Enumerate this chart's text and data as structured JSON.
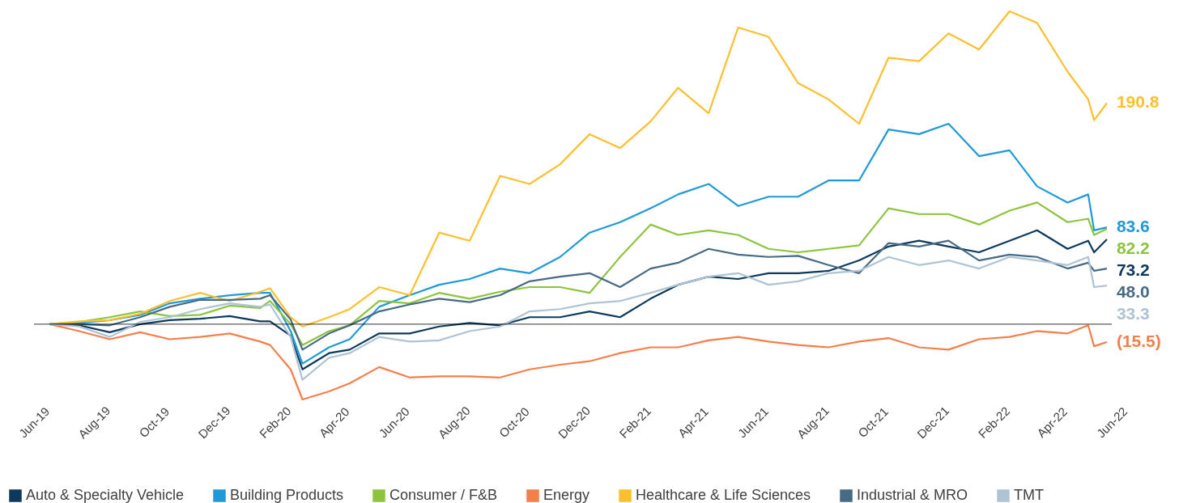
{
  "chart_data": {
    "type": "line",
    "x": [
      "2019-06-17",
      "2019-07-17",
      "2019-08-17",
      "2019-09-17",
      "2019-10-17",
      "2019-11-17",
      "2019-12-17",
      "2020-01-17",
      "2020-01-27",
      "2020-02-17",
      "2020-02-29",
      "2020-03-27",
      "2020-04-17",
      "2020-05-17",
      "2020-06-17",
      "2020-07-17",
      "2020-08-17",
      "2020-09-17",
      "2020-10-17",
      "2020-11-17",
      "2020-12-17",
      "2021-01-17",
      "2021-02-17",
      "2021-03-17",
      "2021-04-17",
      "2021-05-17",
      "2021-06-17",
      "2021-07-17",
      "2021-08-17",
      "2021-09-17",
      "2021-10-17",
      "2021-11-17",
      "2021-12-17",
      "2022-01-17",
      "2022-02-17",
      "2022-03-17",
      "2022-04-17",
      "2022-05-08",
      "2022-05-14",
      "2022-05-27"
    ],
    "series": [
      {
        "name": "Auto & Specialty Vehicle",
        "color": "#0d3a5c",
        "values": [
          0,
          -1,
          -7,
          0,
          3.5,
          4.7,
          7,
          2.4,
          2.4,
          -10,
          -39,
          -25,
          -22,
          -8,
          -8,
          -2,
          1,
          -1,
          6,
          6,
          11,
          6,
          22,
          34,
          41,
          39,
          44,
          44,
          46,
          55,
          67,
          72,
          67,
          62,
          72,
          81,
          65,
          72,
          62,
          73.2
        ],
        "value_labels": [
          null,
          null,
          null,
          null,
          null,
          null,
          null,
          null,
          null,
          null,
          null,
          null,
          null,
          null,
          null,
          null,
          null,
          null,
          null,
          null,
          null,
          null,
          null,
          null,
          null,
          null,
          null,
          null,
          null,
          null,
          null,
          null,
          null,
          null,
          null,
          null,
          null,
          null,
          null,
          "73.2"
        ]
      },
      {
        "name": "Building Products",
        "color": "#1f9ad6",
        "values": [
          0,
          1,
          3.5,
          8,
          18,
          22,
          25,
          27,
          27,
          -6,
          -34,
          -20,
          -13,
          15,
          25,
          34,
          39,
          48,
          44,
          58,
          79,
          88,
          100,
          112,
          121,
          102,
          110,
          110,
          124,
          124,
          168,
          164,
          173,
          145,
          150,
          119,
          105,
          112,
          81,
          83.6
        ],
        "value_labels": [
          null,
          null,
          null,
          null,
          null,
          null,
          null,
          null,
          null,
          null,
          null,
          null,
          null,
          null,
          null,
          null,
          null,
          null,
          null,
          null,
          null,
          null,
          null,
          null,
          null,
          null,
          null,
          null,
          null,
          null,
          null,
          null,
          null,
          null,
          null,
          null,
          null,
          null,
          null,
          "83.6"
        ]
      },
      {
        "name": "Consumer / F&B",
        "color": "#8cc43f",
        "values": [
          0,
          2,
          6,
          11,
          7,
          8,
          16,
          14,
          20,
          0,
          -18,
          -6,
          -1,
          20,
          18,
          27,
          22,
          28,
          32,
          32,
          27,
          58,
          86,
          77,
          81,
          77,
          65,
          62,
          65,
          68,
          100,
          95,
          95,
          86,
          98,
          105,
          88,
          91,
          77,
          82.2
        ],
        "value_labels": [
          null,
          null,
          null,
          null,
          null,
          null,
          null,
          null,
          null,
          null,
          null,
          null,
          null,
          null,
          null,
          null,
          null,
          null,
          null,
          null,
          null,
          null,
          null,
          null,
          null,
          null,
          null,
          null,
          null,
          null,
          null,
          null,
          null,
          null,
          null,
          null,
          null,
          null,
          null,
          "82.2"
        ]
      },
      {
        "name": "Energy",
        "color": "#f47f4a",
        "values": [
          0,
          -6,
          -13,
          -7,
          -13,
          -11,
          -8,
          -15,
          -18,
          -39,
          -65,
          -58,
          -51,
          -37,
          -46,
          -45,
          -45,
          -46,
          -39,
          -35,
          -32,
          -25,
          -20,
          -20,
          -14,
          -11,
          -15,
          -18,
          -20,
          -15,
          -12,
          -20,
          -22,
          -13,
          -11,
          -6,
          -8,
          -1,
          -19,
          -15.5
        ],
        "value_labels": [
          null,
          null,
          null,
          null,
          null,
          null,
          null,
          null,
          null,
          null,
          null,
          null,
          null,
          null,
          null,
          null,
          null,
          null,
          null,
          null,
          null,
          null,
          null,
          null,
          null,
          null,
          null,
          null,
          null,
          null,
          null,
          null,
          null,
          null,
          null,
          null,
          null,
          null,
          null,
          "(15.5)"
        ]
      },
      {
        "name": "Healthcare & Life Sciences",
        "color": "#fcc02e",
        "values": [
          0,
          2.4,
          3.5,
          9,
          20,
          27,
          20,
          28,
          31,
          6,
          -2,
          6,
          13,
          32,
          25,
          79,
          72,
          128,
          121,
          138,
          164,
          152,
          175,
          204,
          182,
          256,
          248,
          208,
          194,
          173,
          230,
          227,
          251,
          237,
          270,
          260,
          218,
          194,
          176,
          190.8
        ],
        "value_labels": [
          null,
          null,
          null,
          null,
          null,
          null,
          null,
          null,
          null,
          null,
          null,
          null,
          null,
          null,
          null,
          null,
          null,
          null,
          null,
          null,
          null,
          null,
          null,
          null,
          null,
          null,
          null,
          null,
          null,
          null,
          null,
          null,
          null,
          null,
          null,
          null,
          null,
          null,
          null,
          "190.8"
        ]
      },
      {
        "name": "Industrial & MRO",
        "color": "#476a85",
        "values": [
          0,
          0,
          -1,
          6,
          15,
          21,
          21,
          22,
          25,
          4,
          -22,
          -8,
          -1,
          11,
          17,
          22,
          19,
          25,
          37,
          41,
          44,
          32,
          48,
          53,
          65,
          60,
          58,
          59,
          51,
          44,
          70,
          67,
          72,
          55,
          60,
          58,
          48,
          53,
          46,
          48.0
        ],
        "value_labels": [
          null,
          null,
          null,
          null,
          null,
          null,
          null,
          null,
          null,
          null,
          null,
          null,
          null,
          null,
          null,
          null,
          null,
          null,
          null,
          null,
          null,
          null,
          null,
          null,
          null,
          null,
          null,
          null,
          null,
          null,
          null,
          null,
          null,
          null,
          null,
          null,
          null,
          null,
          null,
          "48.0"
        ]
      },
      {
        "name": "TMT",
        "color": "#aec4d4",
        "values": [
          0,
          -2,
          -11,
          2,
          6,
          13,
          18,
          15,
          17,
          -11,
          -48,
          -29,
          -25,
          -11,
          -15,
          -14,
          -6,
          -2,
          11,
          13,
          18,
          20,
          27,
          34,
          41,
          44,
          34,
          37,
          44,
          46,
          58,
          51,
          55,
          48,
          58,
          55,
          51,
          58,
          32,
          33.3
        ],
        "value_labels": [
          null,
          null,
          null,
          null,
          null,
          null,
          null,
          null,
          null,
          null,
          null,
          null,
          null,
          null,
          null,
          null,
          null,
          null,
          null,
          null,
          null,
          null,
          null,
          null,
          null,
          null,
          null,
          null,
          null,
          null,
          null,
          null,
          null,
          null,
          null,
          null,
          null,
          null,
          null,
          "33.3"
        ]
      }
    ],
    "xlim": [
      "2019-06-01",
      "2022-06-01"
    ],
    "xticks": [
      {
        "value": "2019-06-01",
        "label": "Jun-19"
      },
      {
        "value": "2019-08-01",
        "label": "Aug-19"
      },
      {
        "value": "2019-10-01",
        "label": "Oct-19"
      },
      {
        "value": "2019-12-01",
        "label": "Dec-19"
      },
      {
        "value": "2020-02-01",
        "label": "Feb-20"
      },
      {
        "value": "2020-04-01",
        "label": "Apr-20"
      },
      {
        "value": "2020-06-01",
        "label": "Jun-20"
      },
      {
        "value": "2020-08-01",
        "label": "Aug-20"
      },
      {
        "value": "2020-10-01",
        "label": "Oct-20"
      },
      {
        "value": "2020-12-01",
        "label": "Dec-20"
      },
      {
        "value": "2021-02-01",
        "label": "Feb-21"
      },
      {
        "value": "2021-04-01",
        "label": "Apr-21"
      },
      {
        "value": "2021-06-01",
        "label": "Jun-21"
      },
      {
        "value": "2021-08-01",
        "label": "Aug-21"
      },
      {
        "value": "2021-10-01",
        "label": "Oct-21"
      },
      {
        "value": "2021-12-01",
        "label": "Dec-21"
      },
      {
        "value": "2022-02-01",
        "label": "Feb-22"
      },
      {
        "value": "2022-04-01",
        "label": "Apr-22"
      },
      {
        "value": "2022-06-01",
        "label": "Jun-22"
      }
    ],
    "tick_labels": "x",
    "ref_lines": [
      {
        "axis": "y",
        "value": 0,
        "color": "#000000"
      }
    ],
    "legend": "bottom",
    "grid": false,
    "line_style": "solid"
  }
}
